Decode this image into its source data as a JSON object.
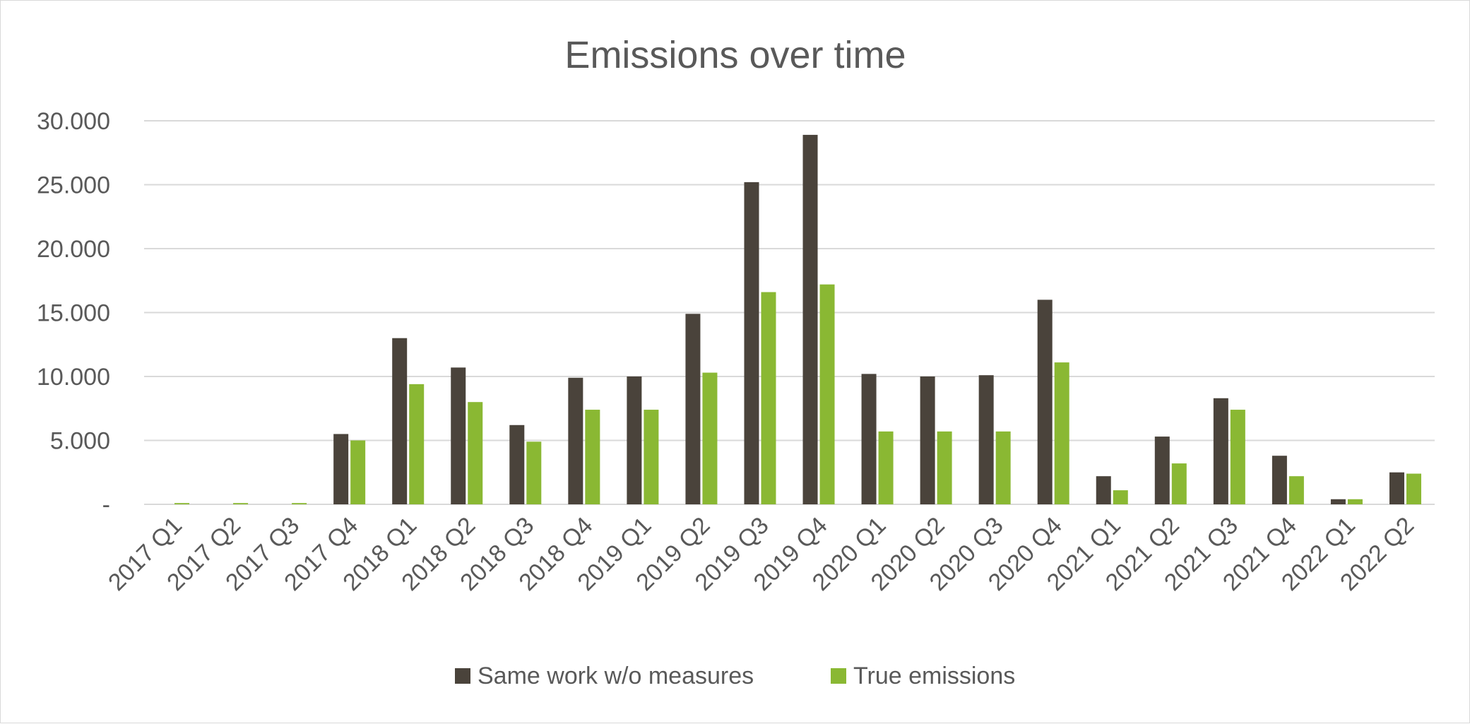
{
  "chart_data": {
    "type": "bar",
    "title": "Emissions over time",
    "xlabel": "",
    "ylabel": "",
    "ylim": [
      0,
      30000
    ],
    "yticks": [
      {
        "value": 0,
        "label": "-"
      },
      {
        "value": 5000,
        "label": "5.000"
      },
      {
        "value": 10000,
        "label": "10.000"
      },
      {
        "value": 15000,
        "label": "15.000"
      },
      {
        "value": 20000,
        "label": "20.000"
      },
      {
        "value": 25000,
        "label": "25.000"
      },
      {
        "value": 30000,
        "label": "30.000"
      }
    ],
    "grid": true,
    "legend_position": "bottom",
    "categories": [
      "2017 Q1",
      "2017 Q2",
      "2017 Q3",
      "2017 Q4",
      "2018 Q1",
      "2018 Q2",
      "2018 Q3",
      "2018 Q4",
      "2019 Q1",
      "2019 Q2",
      "2019 Q3",
      "2019 Q4",
      "2020 Q1",
      "2020 Q2",
      "2020 Q3",
      "2020 Q4",
      "2021 Q1",
      "2021 Q2",
      "2021 Q3",
      "2021 Q4",
      "2022 Q1",
      "2022 Q2"
    ],
    "series": [
      {
        "name": "Same work w/o measures",
        "color": "#4a433b",
        "values": [
          0,
          0,
          0,
          5500,
          13000,
          10700,
          6200,
          9900,
          10000,
          14900,
          25200,
          28900,
          10200,
          10000,
          10100,
          16000,
          2200,
          5300,
          8300,
          3800,
          400,
          2500
        ]
      },
      {
        "name": "True emissions",
        "color": "#8ab833",
        "values": [
          100,
          100,
          100,
          5000,
          9400,
          8000,
          4900,
          7400,
          7400,
          10300,
          16600,
          17200,
          5700,
          5700,
          5700,
          11100,
          1100,
          3200,
          7400,
          2200,
          400,
          2400
        ]
      }
    ]
  }
}
